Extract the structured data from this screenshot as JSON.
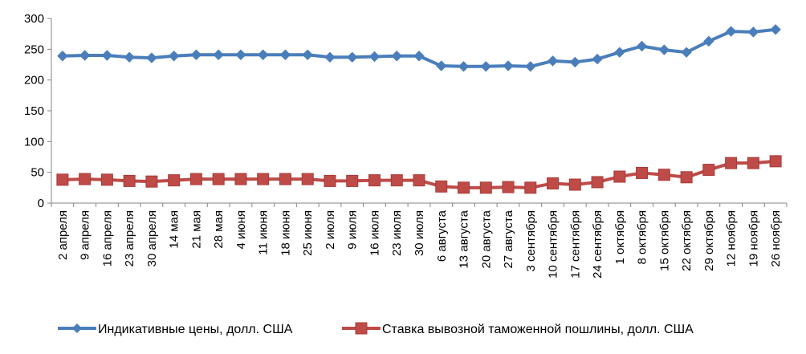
{
  "chart_data": {
    "type": "line",
    "categories": [
      "2 апреля",
      "9 апреля",
      "16 апреля",
      "23 апреля",
      "30 апреля",
      "14 мая",
      "21 мая",
      "28 мая",
      "4 июня",
      "11 июня",
      "18 июня",
      "25 июня",
      "2 июля",
      "9 июля",
      "16 июля",
      "23 июля",
      "30 июля",
      "6 августа",
      "13 августа",
      "20 августа",
      "27 августа",
      "3 сентября",
      "10 сентября",
      "17 сентября",
      "24 сентября",
      "1 октября",
      "8 октября",
      "15 октября",
      "22 октября",
      "29 октября",
      "12 ноября",
      "19 ноября",
      "26 ноября"
    ],
    "series": [
      {
        "name": "Индикативные цены, долл. США",
        "color": "#4a7ebb",
        "marker": "diamond",
        "values": [
          239,
          240,
          240,
          237,
          236,
          239,
          241,
          241,
          241,
          241,
          241,
          241,
          237,
          237,
          238,
          239,
          239,
          223,
          222,
          222,
          223,
          222,
          231,
          229,
          234,
          245,
          255,
          249,
          245,
          263,
          279,
          278,
          282
        ]
      },
      {
        "name": "Ставка вывозной таможенной пошлины, долл. США",
        "color": "#be4b48",
        "marker": "square",
        "values": [
          38,
          39,
          38,
          36,
          35,
          37,
          39,
          39,
          39,
          39,
          39,
          39,
          36,
          36,
          37,
          37,
          37,
          27,
          25,
          25,
          26,
          25,
          32,
          30,
          34,
          43,
          49,
          46,
          42,
          54,
          65,
          65,
          68
        ]
      }
    ],
    "ylim": [
      0,
      300
    ],
    "yticks": [
      "0",
      "50",
      "100",
      "150",
      "200",
      "250",
      "300"
    ],
    "grid": false,
    "legend": "bottom"
  }
}
